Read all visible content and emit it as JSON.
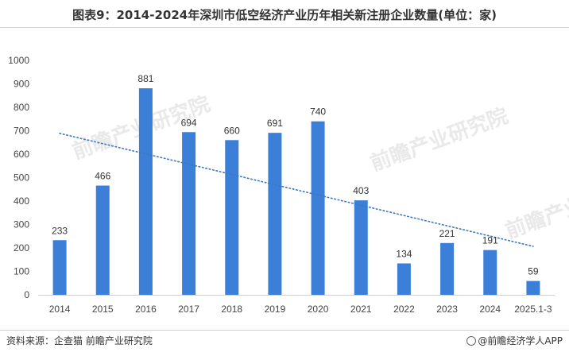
{
  "title": "图表9：2014-2024年深圳市低空经济产业历年相关新注册企业数量(单位：家)",
  "source": "资料来源：企查猫 前瞻产业研究院",
  "credit": "@前瞻经济学人APP",
  "watermark": "前瞻产业研究院",
  "colors": {
    "bar": "#3b7fd9",
    "trend": "#3a78c0",
    "text": "#333333"
  },
  "chart_data": {
    "type": "bar",
    "categories": [
      "2014",
      "2015",
      "2016",
      "2017",
      "2018",
      "2019",
      "2020",
      "2021",
      "2022",
      "2023",
      "2024",
      "2025.1-3"
    ],
    "values": [
      233,
      466,
      881,
      694,
      660,
      691,
      740,
      403,
      134,
      221,
      191,
      59
    ],
    "title": "图表9：2014-2024年深圳市低空经济产业历年相关新注册企业数量(单位：家)",
    "xlabel": "",
    "ylabel": "",
    "ylim": [
      0,
      1000
    ],
    "yticks": [
      0,
      100,
      200,
      300,
      400,
      500,
      600,
      700,
      800,
      900,
      1000
    ],
    "trendline": "linear, dotted",
    "grid": false,
    "legend": "none"
  }
}
